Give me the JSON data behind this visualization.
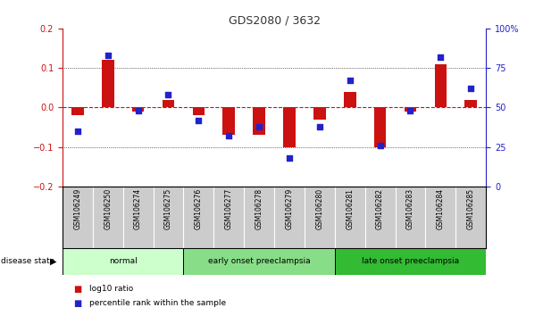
{
  "title": "GDS2080 / 3632",
  "samples": [
    "GSM106249",
    "GSM106250",
    "GSM106274",
    "GSM106275",
    "GSM106276",
    "GSM106277",
    "GSM106278",
    "GSM106279",
    "GSM106280",
    "GSM106281",
    "GSM106282",
    "GSM106283",
    "GSM106284",
    "GSM106285"
  ],
  "log10_ratio": [
    -0.02,
    0.12,
    -0.01,
    0.02,
    -0.02,
    -0.07,
    -0.07,
    -0.1,
    -0.03,
    0.04,
    -0.1,
    -0.01,
    0.11,
    0.02
  ],
  "percentile_rank": [
    35,
    83,
    48,
    58,
    42,
    32,
    38,
    18,
    38,
    67,
    26,
    48,
    82,
    62
  ],
  "ylim_left": [
    -0.2,
    0.2
  ],
  "ylim_right": [
    0,
    100
  ],
  "yticks_left": [
    -0.2,
    -0.1,
    0,
    0.1,
    0.2
  ],
  "yticks_right": [
    0,
    25,
    50,
    75,
    100
  ],
  "ytick_labels_right": [
    "0",
    "25",
    "50",
    "75",
    "100%"
  ],
  "groups": [
    {
      "label": "normal",
      "start": 0,
      "end": 3,
      "color": "#ccffcc"
    },
    {
      "label": "early onset preeclampsia",
      "start": 4,
      "end": 8,
      "color": "#88dd88"
    },
    {
      "label": "late onset preeclampsia",
      "start": 9,
      "end": 13,
      "color": "#33bb33"
    }
  ],
  "bar_color": "#cc1111",
  "dot_color": "#2222cc",
  "zero_line_color": "#cc1111",
  "title_color": "#333333",
  "left_axis_color": "#cc1111",
  "right_axis_color": "#2222cc",
  "sample_box_color": "#cccccc",
  "legend_items": [
    {
      "label": "log10 ratio",
      "color": "#cc1111"
    },
    {
      "label": "percentile rank within the sample",
      "color": "#2222cc"
    }
  ]
}
